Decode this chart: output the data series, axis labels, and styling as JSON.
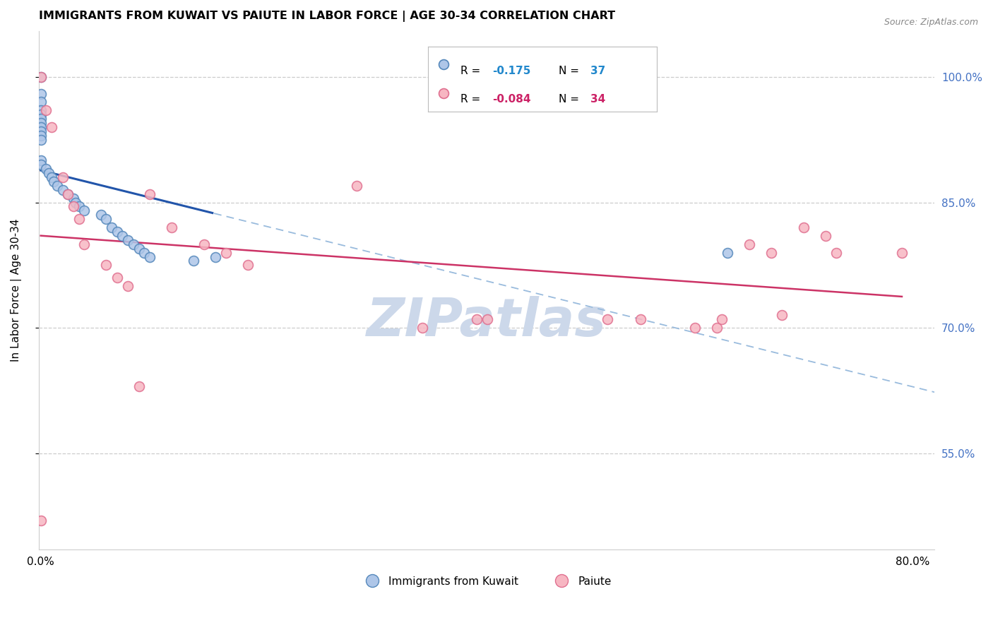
{
  "title": "IMMIGRANTS FROM KUWAIT VS PAIUTE IN LABOR FORCE | AGE 30-34 CORRELATION CHART",
  "source": "Source: ZipAtlas.com",
  "ylabel": "In Labor Force | Age 30-34",
  "series1_label": "Immigrants from Kuwait",
  "series2_label": "Paiute",
  "series1_color": "#aec6e8",
  "series2_color": "#f7b6c2",
  "series1_edge": "#5588bb",
  "series2_edge": "#e07090",
  "series1_R": "-0.175",
  "series1_N": "37",
  "series2_R": "-0.084",
  "series2_N": "34",
  "xlim": [
    -0.002,
    0.82
  ],
  "ylim": [
    0.435,
    1.055
  ],
  "yticks_right": [
    0.55,
    0.7,
    0.85,
    1.0
  ],
  "xticks": [
    0.0,
    0.1,
    0.2,
    0.3,
    0.4,
    0.5,
    0.6,
    0.7,
    0.8
  ],
  "grid_color": "#cccccc",
  "bg_color": "#ffffff",
  "watermark_color": "#ccd8ea",
  "trend1_color": "#2255aa",
  "trend2_color": "#cc3366",
  "dashed_color": "#99bbdd",
  "legend_R_color1": "#2288cc",
  "legend_R_color2": "#cc2266",
  "series1_x": [
    0.0,
    0.0,
    0.0,
    0.0,
    0.0,
    0.0,
    0.0,
    0.0,
    0.0,
    0.0,
    0.0,
    0.0,
    0.0,
    0.005,
    0.007,
    0.01,
    0.012,
    0.015,
    0.02,
    0.025,
    0.03,
    0.032,
    0.035,
    0.04,
    0.055,
    0.06,
    0.065,
    0.07,
    0.075,
    0.08,
    0.085,
    0.09,
    0.095,
    0.1,
    0.14,
    0.16,
    0.63
  ],
  "series1_y": [
    1.0,
    0.98,
    0.97,
    0.96,
    0.955,
    0.95,
    0.945,
    0.94,
    0.935,
    0.93,
    0.925,
    0.9,
    0.895,
    0.89,
    0.885,
    0.88,
    0.875,
    0.87,
    0.865,
    0.86,
    0.855,
    0.85,
    0.845,
    0.84,
    0.835,
    0.83,
    0.82,
    0.815,
    0.81,
    0.805,
    0.8,
    0.795,
    0.79,
    0.785,
    0.78,
    0.785,
    0.79
  ],
  "series2_x": [
    0.0,
    0.0,
    0.005,
    0.01,
    0.02,
    0.025,
    0.03,
    0.035,
    0.04,
    0.06,
    0.07,
    0.08,
    0.09,
    0.1,
    0.12,
    0.15,
    0.17,
    0.19,
    0.29,
    0.35,
    0.4,
    0.41,
    0.52,
    0.55,
    0.6,
    0.62,
    0.625,
    0.65,
    0.67,
    0.68,
    0.7,
    0.72,
    0.73,
    0.79
  ],
  "series2_y": [
    1.0,
    0.47,
    0.96,
    0.94,
    0.88,
    0.86,
    0.845,
    0.83,
    0.8,
    0.775,
    0.76,
    0.75,
    0.63,
    0.86,
    0.82,
    0.8,
    0.79,
    0.775,
    0.87,
    0.7,
    0.71,
    0.71,
    0.71,
    0.71,
    0.7,
    0.7,
    0.71,
    0.8,
    0.79,
    0.715,
    0.82,
    0.81,
    0.79,
    0.79
  ]
}
